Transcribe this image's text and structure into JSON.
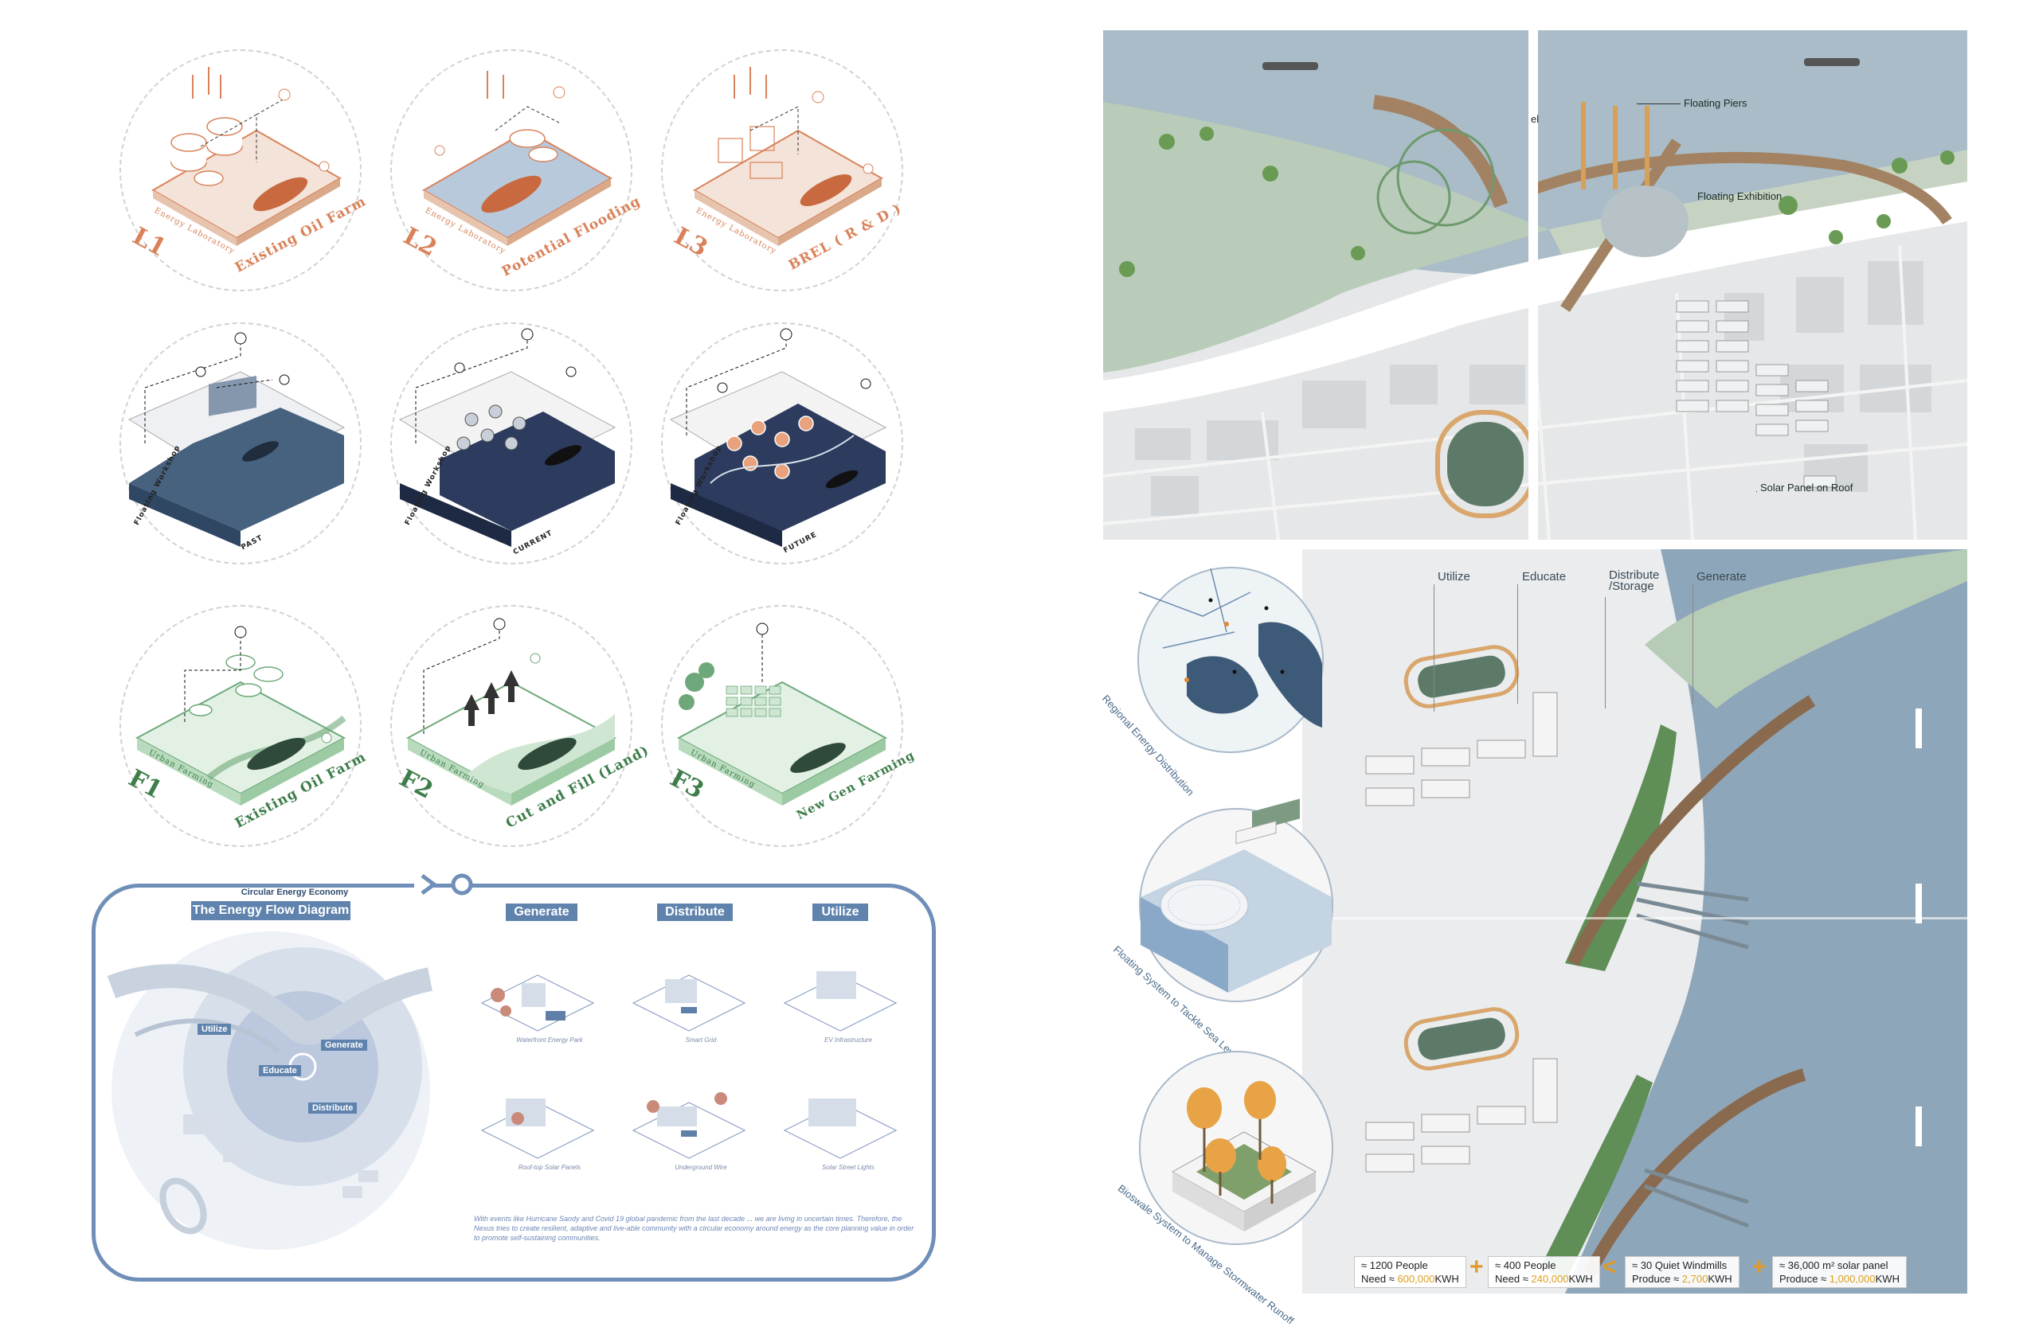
{
  "row1": [
    {
      "series": "Energy Laboratory",
      "code": "L1",
      "title": "Existing Oil Farm"
    },
    {
      "series": "Energy Laboratory",
      "code": "L2",
      "title": "Potential Flooding"
    },
    {
      "series": "Energy Laboratory",
      "code": "L3",
      "title": "BREL ( R & D )"
    }
  ],
  "row2": [
    {
      "series": "Floating Workshop",
      "stage": "PAST"
    },
    {
      "series": "Floating Workshop",
      "stage": "CURRENT"
    },
    {
      "series": "Floating Workshop",
      "stage": "FUTURE"
    }
  ],
  "row3": [
    {
      "series": "Urban Farming",
      "code": "F1",
      "title": "Existing Oil Farm"
    },
    {
      "series": "Urban Farming",
      "code": "F2",
      "title": "Cut and Fill (Land)"
    },
    {
      "series": "Urban Farming",
      "code": "F3",
      "title": "New Gen Farming"
    }
  ],
  "energy_flow": {
    "supertitle": "Circular Energy Economy",
    "title": "The Energy Flow Diagram",
    "map_tags": [
      "Utilize",
      "Generate",
      "Educate",
      "Distribute"
    ],
    "columns": [
      "Generate",
      "Distribute",
      "Utilize"
    ],
    "captions": [
      "Waterfront Energy Park",
      "Smart Grid",
      "EV Infrastructure",
      "Roof-top Solar Panels",
      "Underground Wire",
      "Solar Street Lights"
    ],
    "paragraph": "With events like Hurricane Sandy and Covid 19 global pandemic from the last decade ... we are living in uncertain times. Therefore, the Nexus tries to create resilient, adaptive and live-able community with a circular economy around energy as the core planning value in order to promote self-sustaining communities."
  },
  "site_plan": {
    "labels": [
      "Floating Piers",
      "Floating Exhibition",
      "Solar Panel on Roof",
      "el"
    ]
  },
  "axon": {
    "headers": [
      "Utilize",
      "Educate",
      "Distribute\n/Storage",
      "Generate"
    ],
    "insets": [
      "Regional Energy Distribution",
      "Floating System to Tackle Sea Level Rise",
      "Bioswale System to Manage Stormwater Runoff"
    ],
    "stats": [
      {
        "line1": "≈ 1200 People",
        "need_pre": "Need ≈ ",
        "need_val": "600,000",
        "need_post": "KWH"
      },
      {
        "line1": "≈ 400 People",
        "need_pre": "Need ≈ ",
        "need_val": "240,000",
        "need_post": "KWH"
      },
      {
        "line1": "≈ 30 Quiet Windmills",
        "need_pre": "Produce ≈ ",
        "need_val": "2,700",
        "need_post": "KWH"
      },
      {
        "line1": "≈ 36,000 m² solar panel",
        "need_pre": "Produce ≈ ",
        "need_val": "1,000,000",
        "need_post": "KWH"
      }
    ],
    "operators": [
      "+",
      "<",
      "+"
    ]
  },
  "colors": {
    "orange": "#d9825a",
    "green": "#3d7d4a",
    "water": "#8aa3b8",
    "accent_blue": "#5f83ad",
    "highlight": "#e0a020"
  }
}
